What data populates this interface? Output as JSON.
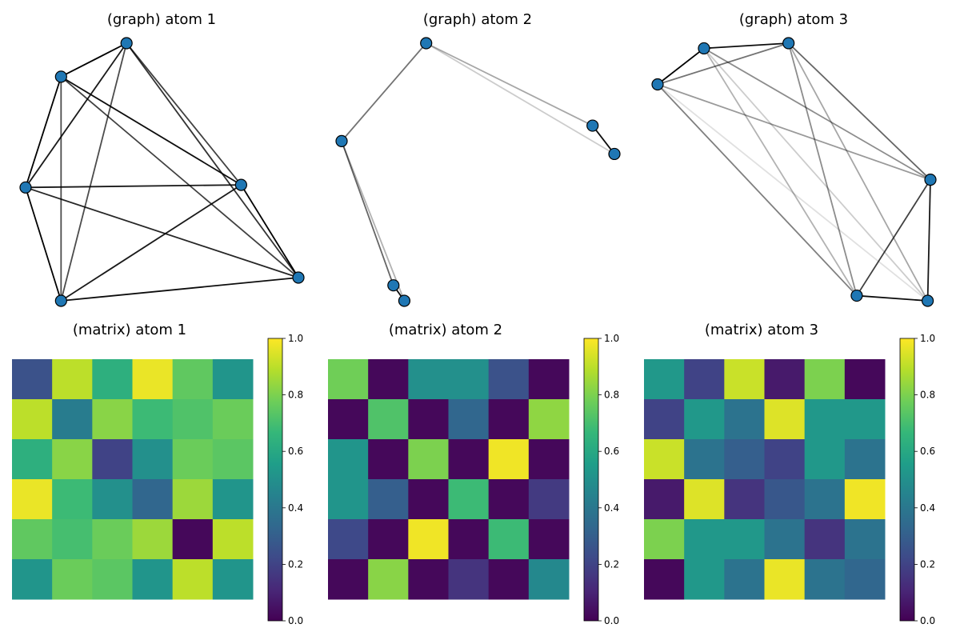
{
  "chart_data": {
    "type": "figure",
    "colormap": "viridis",
    "node_color": "#1f77b4",
    "node_edge_color": "#000000",
    "graphs": [
      {
        "title": "(graph) atom 1",
        "type": "network",
        "nodes": [
          {
            "id": 0,
            "x": 0.37,
            "y": 0.0
          },
          {
            "id": 1,
            "x": 0.13,
            "y": 0.13
          },
          {
            "id": 2,
            "x": 0.0,
            "y": 0.56
          },
          {
            "id": 3,
            "x": 0.79,
            "y": 0.55
          },
          {
            "id": 4,
            "x": 1.0,
            "y": 0.91
          },
          {
            "id": 5,
            "x": 0.13,
            "y": 1.0
          }
        ],
        "edges": [
          {
            "source": 0,
            "target": 1,
            "weight": 1.0
          },
          {
            "source": 0,
            "target": 2,
            "weight": 0.9
          },
          {
            "source": 0,
            "target": 3,
            "weight": 0.75
          },
          {
            "source": 0,
            "target": 4,
            "weight": 0.8
          },
          {
            "source": 0,
            "target": 5,
            "weight": 0.7
          },
          {
            "source": 1,
            "target": 2,
            "weight": 1.0
          },
          {
            "source": 1,
            "target": 3,
            "weight": 0.95
          },
          {
            "source": 1,
            "target": 4,
            "weight": 0.75
          },
          {
            "source": 1,
            "target": 5,
            "weight": 0.7
          },
          {
            "source": 2,
            "target": 3,
            "weight": 0.9
          },
          {
            "source": 2,
            "target": 4,
            "weight": 0.85
          },
          {
            "source": 2,
            "target": 5,
            "weight": 1.0
          },
          {
            "source": 3,
            "target": 4,
            "weight": 1.0
          },
          {
            "source": 3,
            "target": 5,
            "weight": 0.9
          },
          {
            "source": 4,
            "target": 5,
            "weight": 0.95
          }
        ]
      },
      {
        "title": "(graph) atom 2",
        "type": "network",
        "nodes": [
          {
            "id": 0,
            "x": 0.31,
            "y": 0.0
          },
          {
            "id": 1,
            "x": 0.0,
            "y": 0.38
          },
          {
            "id": 2,
            "x": 0.92,
            "y": 0.32
          },
          {
            "id": 3,
            "x": 1.0,
            "y": 0.43
          },
          {
            "id": 4,
            "x": 0.19,
            "y": 0.94
          },
          {
            "id": 5,
            "x": 0.23,
            "y": 1.0
          }
        ],
        "edges": [
          {
            "source": 0,
            "target": 1,
            "weight": 0.55
          },
          {
            "source": 0,
            "target": 2,
            "weight": 0.35
          },
          {
            "source": 0,
            "target": 3,
            "weight": 0.2
          },
          {
            "source": 2,
            "target": 3,
            "weight": 0.95
          },
          {
            "source": 1,
            "target": 4,
            "weight": 0.6
          },
          {
            "source": 1,
            "target": 5,
            "weight": 0.3
          },
          {
            "source": 4,
            "target": 5,
            "weight": 0.95
          }
        ]
      },
      {
        "title": "(graph) atom 3",
        "type": "network",
        "nodes": [
          {
            "id": 0,
            "x": 0.17,
            "y": 0.02
          },
          {
            "id": 1,
            "x": 0.48,
            "y": 0.0
          },
          {
            "id": 2,
            "x": 0.0,
            "y": 0.16
          },
          {
            "id": 3,
            "x": 1.0,
            "y": 0.53
          },
          {
            "id": 4,
            "x": 0.73,
            "y": 0.98
          },
          {
            "id": 5,
            "x": 0.99,
            "y": 1.0
          }
        ],
        "edges": [
          {
            "source": 0,
            "target": 1,
            "weight": 0.95
          },
          {
            "source": 0,
            "target": 2,
            "weight": 1.0
          },
          {
            "source": 1,
            "target": 2,
            "weight": 0.55
          },
          {
            "source": 0,
            "target": 3,
            "weight": 0.45
          },
          {
            "source": 0,
            "target": 4,
            "weight": 0.3
          },
          {
            "source": 0,
            "target": 5,
            "weight": 0.2
          },
          {
            "source": 1,
            "target": 3,
            "weight": 0.6
          },
          {
            "source": 1,
            "target": 4,
            "weight": 0.45
          },
          {
            "source": 1,
            "target": 5,
            "weight": 0.35
          },
          {
            "source": 2,
            "target": 3,
            "weight": 0.4
          },
          {
            "source": 2,
            "target": 4,
            "weight": 0.5
          },
          {
            "source": 2,
            "target": 5,
            "weight": 0.12
          },
          {
            "source": 3,
            "target": 4,
            "weight": 0.75
          },
          {
            "source": 3,
            "target": 5,
            "weight": 0.9
          },
          {
            "source": 4,
            "target": 5,
            "weight": 0.95
          }
        ]
      }
    ],
    "matrices": [
      {
        "title": "(matrix) atom 1",
        "type": "heatmap",
        "vmin": 0.0,
        "vmax": 1.0,
        "colorbar_ticks": [
          "0.0",
          "0.2",
          "0.4",
          "0.6",
          "0.8",
          "1.0"
        ],
        "values": [
          [
            0.25,
            0.9,
            0.63,
            0.97,
            0.75,
            0.52
          ],
          [
            0.9,
            0.42,
            0.82,
            0.68,
            0.72,
            0.77
          ],
          [
            0.63,
            0.82,
            0.2,
            0.5,
            0.77,
            0.74
          ],
          [
            0.97,
            0.68,
            0.5,
            0.33,
            0.85,
            0.52
          ],
          [
            0.75,
            0.7,
            0.77,
            0.85,
            0.02,
            0.9
          ],
          [
            0.52,
            0.77,
            0.74,
            0.52,
            0.9,
            0.52
          ]
        ]
      },
      {
        "title": "(matrix) atom 2",
        "type": "heatmap",
        "vmin": 0.0,
        "vmax": 1.0,
        "colorbar_ticks": [
          "0.0",
          "0.2",
          "0.4",
          "0.6",
          "0.8",
          "1.0"
        ],
        "values": [
          [
            0.78,
            0.02,
            0.5,
            0.5,
            0.25,
            0.02
          ],
          [
            0.02,
            0.72,
            0.02,
            0.33,
            0.02,
            0.83
          ],
          [
            0.52,
            0.02,
            0.8,
            0.02,
            0.98,
            0.02
          ],
          [
            0.52,
            0.3,
            0.02,
            0.68,
            0.02,
            0.17
          ],
          [
            0.22,
            0.02,
            0.98,
            0.02,
            0.68,
            0.02
          ],
          [
            0.02,
            0.82,
            0.02,
            0.15,
            0.02,
            0.47
          ]
        ]
      },
      {
        "title": "(matrix) atom 3",
        "type": "heatmap",
        "vmin": 0.0,
        "vmax": 1.0,
        "colorbar_ticks": [
          "0.0",
          "0.2",
          "0.4",
          "0.6",
          "0.8",
          "1.0"
        ],
        "values": [
          [
            0.53,
            0.2,
            0.92,
            0.07,
            0.8,
            0.02
          ],
          [
            0.2,
            0.53,
            0.38,
            0.95,
            0.53,
            0.53
          ],
          [
            0.92,
            0.38,
            0.3,
            0.2,
            0.53,
            0.38
          ],
          [
            0.07,
            0.95,
            0.15,
            0.27,
            0.38,
            0.98
          ],
          [
            0.8,
            0.53,
            0.53,
            0.38,
            0.15,
            0.38
          ],
          [
            0.02,
            0.53,
            0.38,
            0.97,
            0.38,
            0.33
          ]
        ]
      }
    ]
  }
}
